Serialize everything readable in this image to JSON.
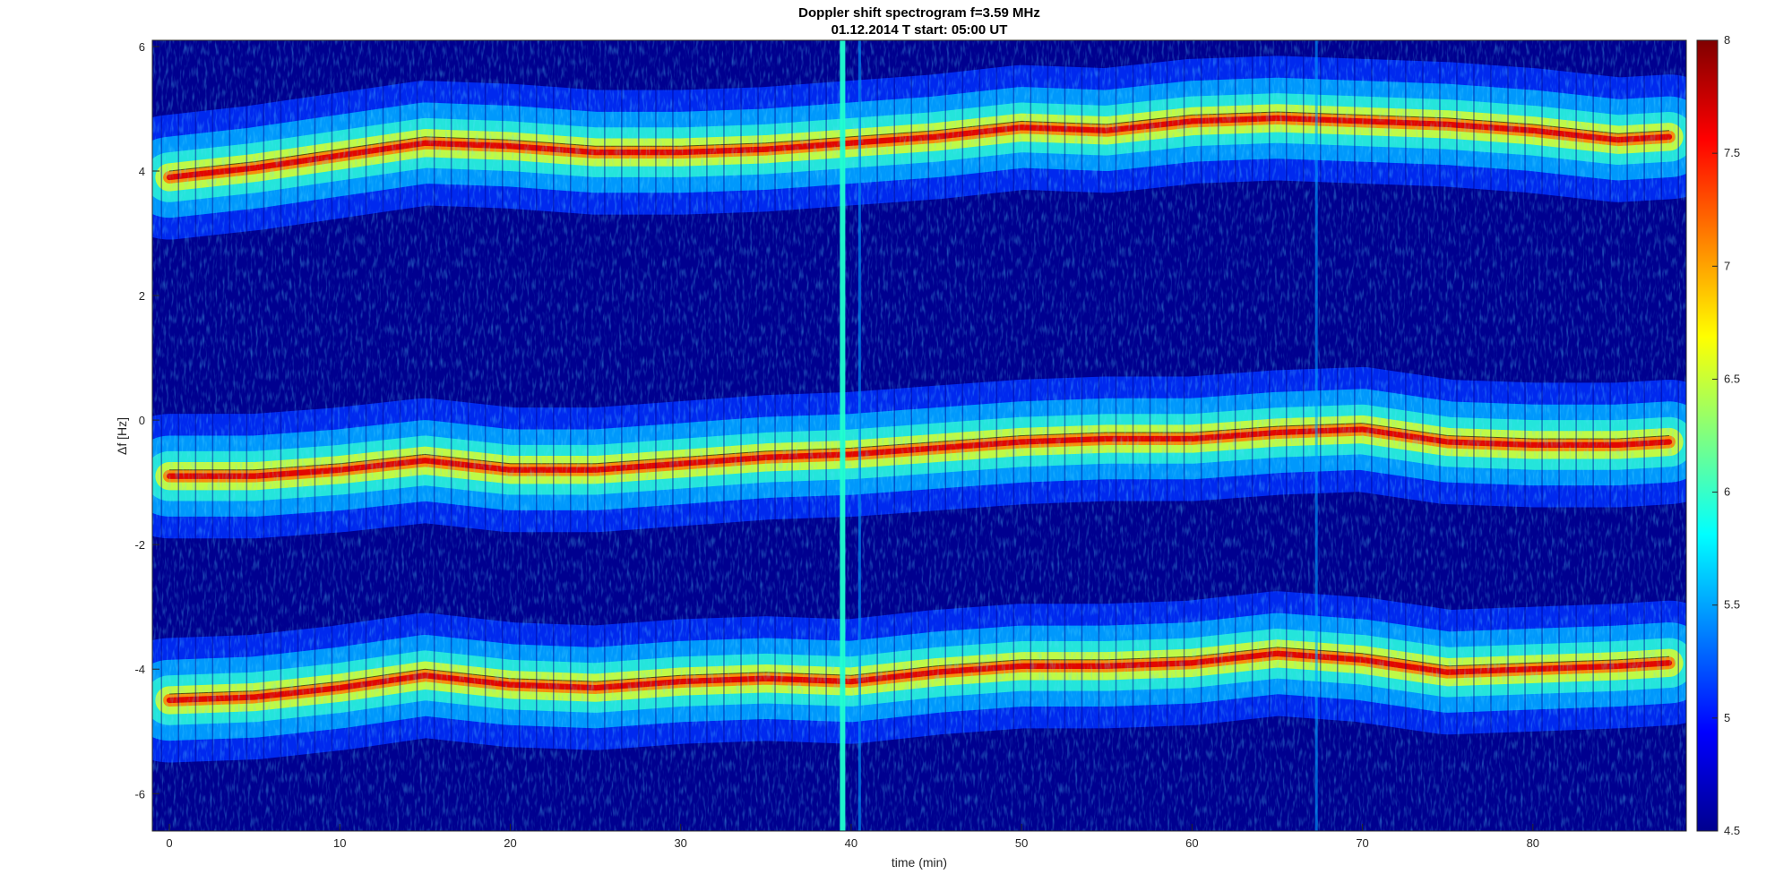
{
  "chart_data": {
    "type": "heatmap",
    "title": "Doppler shift spectrogram f=3.59 MHz",
    "subtitle": "01.12.2014   T start: 05:00 UT",
    "xlabel": "time (min)",
    "ylabel": "Δf [Hz]",
    "xlim": [
      -1,
      89
    ],
    "ylim": [
      -6.6,
      6.1
    ],
    "xticks": [
      0,
      10,
      20,
      30,
      40,
      50,
      60,
      70,
      80
    ],
    "yticks": [
      -6,
      -4,
      -2,
      0,
      2,
      4,
      6
    ],
    "colormap": "jet",
    "colorbar": {
      "min": 4.5,
      "max": 8,
      "ticks": [
        4.5,
        5,
        5.5,
        6,
        6.5,
        7,
        7.5,
        8
      ]
    },
    "background_color": "#00008f",
    "series": [
      {
        "values_time": [
          0,
          5,
          10,
          15,
          20,
          25,
          30,
          35,
          40,
          45,
          50,
          55,
          60,
          65,
          70,
          75,
          80,
          85,
          88
        ],
        "values_freq": [
          3.9,
          4.05,
          4.25,
          4.45,
          4.4,
          4.3,
          4.3,
          4.35,
          4.45,
          4.55,
          4.7,
          4.65,
          4.8,
          4.85,
          4.8,
          4.75,
          4.65,
          4.5,
          4.55
        ]
      },
      {
        "values_time": [
          0,
          5,
          10,
          15,
          20,
          25,
          30,
          35,
          40,
          45,
          50,
          55,
          60,
          65,
          70,
          75,
          80,
          85,
          88
        ],
        "values_freq": [
          -0.9,
          -0.9,
          -0.8,
          -0.65,
          -0.8,
          -0.8,
          -0.7,
          -0.6,
          -0.55,
          -0.45,
          -0.35,
          -0.3,
          -0.3,
          -0.2,
          -0.15,
          -0.35,
          -0.4,
          -0.4,
          -0.35
        ]
      },
      {
        "values_time": [
          0,
          5,
          10,
          15,
          20,
          25,
          30,
          35,
          40,
          45,
          50,
          55,
          60,
          65,
          70,
          75,
          80,
          85,
          88
        ],
        "values_freq": [
          -4.5,
          -4.45,
          -4.3,
          -4.1,
          -4.25,
          -4.3,
          -4.2,
          -4.15,
          -4.2,
          -4.05,
          -3.95,
          -3.95,
          -3.9,
          -3.75,
          -3.85,
          -4.05,
          -4.0,
          -3.95,
          -3.9
        ]
      }
    ],
    "vertical_streaks_time": [
      39.5,
      40.5,
      67.3
    ]
  }
}
